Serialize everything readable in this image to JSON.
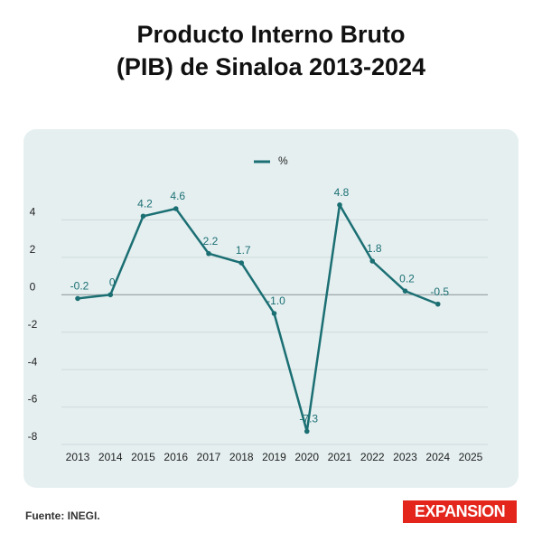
{
  "chart_data": {
    "type": "line",
    "title": "Producto Interno Bruto (PIB) de Sinaloa 2013-2024",
    "categories": [
      "2013",
      "2014",
      "2015",
      "2016",
      "2017",
      "2018",
      "2019",
      "2020",
      "2021",
      "2022",
      "2023",
      "2024",
      "2025"
    ],
    "series": [
      {
        "name": "%",
        "color": "#1b6f73",
        "values": [
          -0.2,
          0,
          4.2,
          4.6,
          2.2,
          1.7,
          -1.0,
          -7.3,
          4.8,
          1.8,
          0.2,
          -0.5,
          null
        ],
        "value_labels": [
          "-0.2",
          "0",
          "4.2",
          "4.6",
          "2.2",
          "1.7",
          "-1.0",
          "-7.3",
          "4.8",
          "1.8",
          "0.2",
          "-0.5",
          null
        ]
      }
    ],
    "ylim": [
      -8,
      6
    ],
    "yticks": [
      -8,
      -6,
      -4,
      -2,
      0,
      2,
      4
    ],
    "grid": true,
    "legend": "top",
    "source": "Fuente: INEGI.",
    "brand": "EXPANSION"
  }
}
